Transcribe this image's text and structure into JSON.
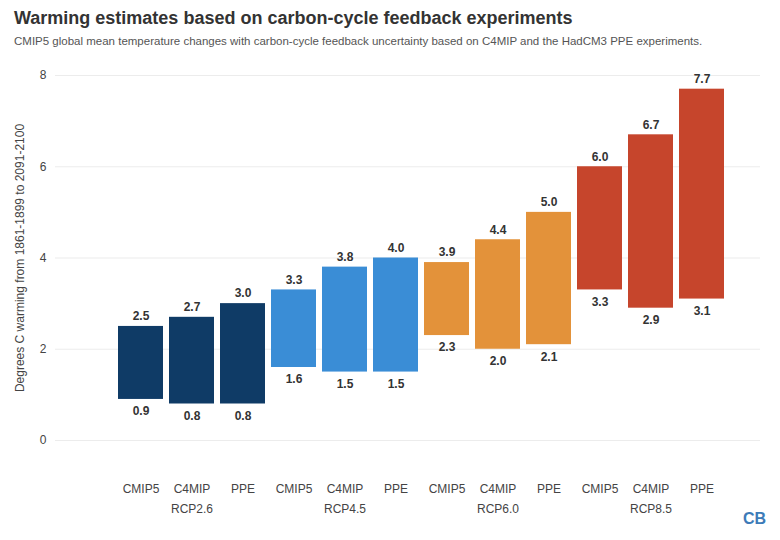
{
  "chart_data": {
    "type": "range_bar",
    "title": "Warming estimates based on carbon-cycle feedback experiments",
    "subtitle": "CMIP5 global mean temperature changes with carbon-cycle feedback uncertainty based on C4MIP and the HadCM3 PPE experiments.",
    "y_label": "Degrees C warming from 1861-1899 to 2091-2100",
    "categories": [
      "CMIP5",
      "C4MIP",
      "PPE"
    ],
    "series": [
      {
        "name": "RCP2.6",
        "color": "#0f3b66",
        "low": [
          0.9,
          0.8,
          0.8
        ],
        "high": [
          2.5,
          2.7,
          3.0
        ],
        "low_labels": [
          "0.9",
          "0.8",
          "0.8"
        ],
        "high_labels": [
          "2.5",
          "2.7",
          "3.0"
        ]
      },
      {
        "name": "RCP4.5",
        "color": "#3a8dd6",
        "low": [
          1.6,
          1.5,
          1.5
        ],
        "high": [
          3.3,
          3.8,
          4.0
        ],
        "low_labels": [
          "1.6",
          "1.5",
          "1.5"
        ],
        "high_labels": [
          "3.3",
          "3.8",
          "4.0"
        ]
      },
      {
        "name": "RCP6.0",
        "color": "#e3923a",
        "low": [
          2.3,
          2.0,
          2.1
        ],
        "high": [
          3.9,
          4.4,
          5.0
        ],
        "low_labels": [
          "2.3",
          "2.0",
          "2.1"
        ],
        "high_labels": [
          "3.9",
          "4.4",
          "5.0"
        ]
      },
      {
        "name": "RCP8.5",
        "color": "#c6452c",
        "low": [
          3.3,
          2.9,
          3.1
        ],
        "high": [
          6.0,
          6.7,
          7.7
        ],
        "low_labels": [
          "3.3",
          "2.9",
          "3.1"
        ],
        "high_labels": [
          "6.0",
          "6.7",
          "7.7"
        ]
      }
    ],
    "ylim": [
      0,
      8
    ],
    "yticks": [
      0,
      2,
      4,
      6,
      8
    ],
    "grid": true,
    "data_labels": true,
    "source": "CB"
  }
}
